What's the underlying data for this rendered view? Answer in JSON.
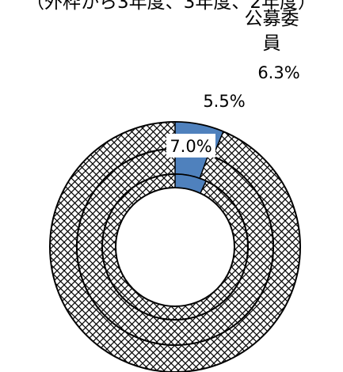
{
  "chart_data": {
    "type": "doughnut",
    "title_partial": "（外枠から3年度、3年度、2年度）",
    "series_label": "公募委員",
    "series_label_lines": [
      "公募委",
      "員"
    ],
    "rings": [
      {
        "ring": "outer",
        "value": 6.3,
        "label": "6.3%"
      },
      {
        "ring": "middle",
        "value": 5.5,
        "label": "5.5%"
      },
      {
        "ring": "inner",
        "value": 7.0,
        "label": "7.0%"
      }
    ],
    "colors": {
      "highlight": "#4f81bd",
      "pattern_line": "#000000",
      "background": "#ffffff"
    }
  }
}
